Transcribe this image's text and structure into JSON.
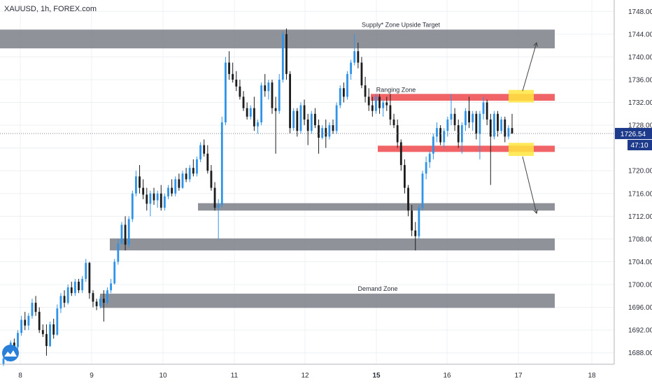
{
  "symbol_title": "XAUUSD, 1h, FOREX.com",
  "colors": {
    "background": "#ffffff",
    "grid": "#edf0f3",
    "up": "#2f93e8",
    "down": "#1c1c1c",
    "zone_gray": "#7b7f87",
    "zone_red": "#ef5c5f",
    "highlight": "#ffe640",
    "last_price_label": "#1e3a8a",
    "axis_text": "#2a2e39"
  },
  "icons": [
    "tradingview-logo-icon",
    "arrow-up-icon",
    "arrow-down-icon"
  ],
  "chart_data": {
    "type": "candlestick",
    "title": "XAUUSD, 1h, FOREX.com",
    "x_ticks": [
      "8",
      "9",
      "10",
      "11",
      "12",
      "15",
      "16",
      "17",
      "18"
    ],
    "y_ticks": [
      1688,
      1692,
      1696,
      1700,
      1704,
      1708,
      1712,
      1716,
      1720,
      1724,
      1728,
      1732,
      1736,
      1740,
      1744,
      1748
    ],
    "y_tick_labels": [
      "1688.00",
      "1692.00",
      "1696.00",
      "1700.00",
      "1704.00",
      "1708.00",
      "1712.00",
      "1716.00",
      "1720.00",
      "1724.00",
      "1728.00",
      "1732.00",
      "1736.00",
      "1740.00",
      "1744.00",
      "1748.00"
    ],
    "ylim": [
      1686,
      1750
    ],
    "last_price": 1726.54,
    "last_price_label": "1726.54",
    "countdown_label": "47:10",
    "zones": [
      {
        "color": "gray",
        "low": 1741.5,
        "high": 1744.8,
        "label": "Supply* Zone Upside Target"
      },
      {
        "color": "red",
        "low": 1732.3,
        "high": 1733.5,
        "label": "Ranging Zone"
      },
      {
        "color": "red",
        "low": 1723.3,
        "high": 1724.4,
        "label": ""
      },
      {
        "color": "gray",
        "low": 1713.0,
        "high": 1714.3,
        "label": ""
      },
      {
        "color": "gray",
        "low": 1706.0,
        "high": 1708.1,
        "label": ""
      },
      {
        "color": "gray",
        "low": 1695.9,
        "high": 1698.4,
        "label": "Demand Zone"
      }
    ],
    "highlights": [
      {
        "low": 1732.0,
        "high": 1734.2
      },
      {
        "low": 1722.6,
        "high": 1724.9
      }
    ],
    "projections": [
      {
        "direction": "up",
        "from": 1734.0,
        "to": 1742.5
      },
      {
        "direction": "down",
        "from": 1722.5,
        "to": 1712.5
      }
    ],
    "candles_ohlc": [
      [
        1686.0,
        1687.5,
        1685.7,
        1687.0
      ],
      [
        1687.0,
        1689.0,
        1686.5,
        1688.6
      ],
      [
        1688.6,
        1690.2,
        1688.0,
        1689.8
      ],
      [
        1689.8,
        1690.5,
        1688.5,
        1689.0
      ],
      [
        1689.0,
        1692.0,
        1688.6,
        1691.5
      ],
      [
        1691.5,
        1694.5,
        1691.0,
        1693.8
      ],
      [
        1693.8,
        1695.2,
        1692.0,
        1692.8
      ],
      [
        1692.8,
        1695.0,
        1692.0,
        1694.5
      ],
      [
        1694.5,
        1697.5,
        1694.0,
        1696.8
      ],
      [
        1696.8,
        1698.0,
        1694.5,
        1695.2
      ],
      [
        1695.2,
        1696.0,
        1691.5,
        1692.0
      ],
      [
        1692.0,
        1693.0,
        1690.8,
        1691.3
      ],
      [
        1691.3,
        1693.0,
        1687.5,
        1689.2
      ],
      [
        1689.2,
        1693.5,
        1689.0,
        1693.0
      ],
      [
        1693.0,
        1694.0,
        1690.5,
        1691.2
      ],
      [
        1691.2,
        1696.5,
        1691.0,
        1695.8
      ],
      [
        1695.8,
        1698.5,
        1695.0,
        1698.0
      ],
      [
        1698.0,
        1699.0,
        1696.0,
        1696.8
      ],
      [
        1696.8,
        1700.0,
        1696.5,
        1699.5
      ],
      [
        1699.5,
        1700.5,
        1698.0,
        1698.5
      ],
      [
        1698.5,
        1701.0,
        1698.0,
        1700.5
      ],
      [
        1700.5,
        1701.0,
        1698.5,
        1699.0
      ],
      [
        1699.0,
        1701.5,
        1698.5,
        1701.0
      ],
      [
        1701.0,
        1704.5,
        1700.5,
        1703.8
      ],
      [
        1703.8,
        1704.0,
        1697.5,
        1698.5
      ],
      [
        1698.5,
        1699.0,
        1696.0,
        1697.0
      ],
      [
        1697.0,
        1697.5,
        1695.5,
        1696.2
      ],
      [
        1696.2,
        1698.0,
        1695.8,
        1697.5
      ],
      [
        1697.5,
        1699.0,
        1693.5,
        1696.8
      ],
      [
        1696.8,
        1699.5,
        1696.5,
        1699.0
      ],
      [
        1699.0,
        1701.0,
        1698.5,
        1700.2
      ],
      [
        1700.2,
        1704.5,
        1700.0,
        1704.0
      ],
      [
        1704.0,
        1708.0,
        1703.5,
        1707.2
      ],
      [
        1707.2,
        1711.0,
        1707.0,
        1710.5
      ],
      [
        1710.5,
        1712.0,
        1706.0,
        1707.0
      ],
      [
        1707.0,
        1712.0,
        1706.5,
        1711.5
      ],
      [
        1711.5,
        1716.5,
        1711.0,
        1716.0
      ],
      [
        1716.0,
        1720.0,
        1715.5,
        1719.0
      ],
      [
        1719.0,
        1721.0,
        1716.0,
        1717.0
      ],
      [
        1717.0,
        1718.5,
        1715.0,
        1715.8
      ],
      [
        1715.8,
        1717.0,
        1713.0,
        1714.2
      ],
      [
        1714.2,
        1716.5,
        1712.0,
        1716.0
      ],
      [
        1716.0,
        1717.0,
        1714.0,
        1714.8
      ],
      [
        1714.8,
        1716.5,
        1713.5,
        1716.0
      ],
      [
        1716.0,
        1717.5,
        1713.0,
        1713.5
      ],
      [
        1713.5,
        1716.0,
        1713.0,
        1715.5
      ],
      [
        1715.5,
        1717.5,
        1715.0,
        1717.0
      ],
      [
        1717.0,
        1718.5,
        1715.5,
        1716.0
      ],
      [
        1716.0,
        1719.0,
        1715.5,
        1718.5
      ],
      [
        1718.5,
        1719.5,
        1716.5,
        1717.0
      ],
      [
        1717.0,
        1720.0,
        1716.8,
        1719.5
      ],
      [
        1719.5,
        1720.5,
        1718.0,
        1718.5
      ],
      [
        1718.5,
        1721.0,
        1718.0,
        1720.5
      ],
      [
        1720.5,
        1722.0,
        1719.0,
        1719.5
      ],
      [
        1719.5,
        1722.5,
        1719.0,
        1722.0
      ],
      [
        1722.0,
        1725.0,
        1721.5,
        1724.5
      ],
      [
        1724.5,
        1725.5,
        1722.5,
        1723.0
      ],
      [
        1723.0,
        1724.5,
        1719.5,
        1720.0
      ],
      [
        1720.0,
        1721.0,
        1716.5,
        1717.0
      ],
      [
        1717.0,
        1718.0,
        1713.0,
        1713.5
      ],
      [
        1713.5,
        1715.0,
        1708.0,
        1714.0
      ],
      [
        1714.0,
        1729.5,
        1713.5,
        1728.5
      ],
      [
        1728.5,
        1740.0,
        1728.0,
        1739.0
      ],
      [
        1739.0,
        1741.0,
        1736.0,
        1737.0
      ],
      [
        1737.0,
        1739.0,
        1735.5,
        1736.0
      ],
      [
        1736.0,
        1737.5,
        1734.0,
        1734.8
      ],
      [
        1734.8,
        1736.0,
        1732.5,
        1733.0
      ],
      [
        1733.0,
        1734.0,
        1730.5,
        1731.0
      ],
      [
        1731.0,
        1732.0,
        1729.0,
        1729.5
      ],
      [
        1729.5,
        1731.5,
        1729.0,
        1731.0
      ],
      [
        1731.0,
        1733.0,
        1727.0,
        1727.8
      ],
      [
        1727.8,
        1729.0,
        1726.5,
        1728.5
      ],
      [
        1728.5,
        1735.5,
        1728.0,
        1735.0
      ],
      [
        1735.0,
        1737.0,
        1733.0,
        1734.0
      ],
      [
        1734.0,
        1736.0,
        1732.5,
        1735.5
      ],
      [
        1735.5,
        1736.0,
        1730.0,
        1731.0
      ],
      [
        1731.0,
        1733.0,
        1723.0,
        1730.5
      ],
      [
        1730.5,
        1737.0,
        1730.0,
        1736.0
      ],
      [
        1736.0,
        1744.5,
        1735.5,
        1744.0
      ],
      [
        1744.0,
        1745.0,
        1736.0,
        1737.0
      ],
      [
        1737.0,
        1737.5,
        1726.5,
        1727.5
      ],
      [
        1727.5,
        1731.0,
        1727.0,
        1730.5
      ],
      [
        1730.5,
        1731.0,
        1726.0,
        1727.0
      ],
      [
        1727.0,
        1732.0,
        1726.5,
        1731.5
      ],
      [
        1731.5,
        1732.5,
        1728.0,
        1729.0
      ],
      [
        1729.0,
        1730.0,
        1724.5,
        1727.0
      ],
      [
        1727.0,
        1730.5,
        1726.5,
        1730.0
      ],
      [
        1730.0,
        1731.0,
        1727.5,
        1728.0
      ],
      [
        1728.0,
        1729.0,
        1723.0,
        1725.8
      ],
      [
        1725.8,
        1728.0,
        1725.5,
        1727.5
      ],
      [
        1727.5,
        1729.0,
        1724.0,
        1726.0
      ],
      [
        1726.0,
        1728.5,
        1725.5,
        1728.0
      ],
      [
        1728.0,
        1729.0,
        1726.5,
        1727.0
      ],
      [
        1727.0,
        1732.0,
        1726.5,
        1731.5
      ],
      [
        1731.5,
        1735.0,
        1731.0,
        1734.5
      ],
      [
        1734.5,
        1735.5,
        1732.0,
        1733.0
      ],
      [
        1733.0,
        1737.5,
        1732.5,
        1737.0
      ],
      [
        1737.0,
        1739.5,
        1736.0,
        1739.0
      ],
      [
        1739.0,
        1744.0,
        1738.5,
        1741.0
      ],
      [
        1741.0,
        1742.5,
        1738.0,
        1739.0
      ],
      [
        1739.0,
        1740.0,
        1734.5,
        1735.0
      ],
      [
        1735.0,
        1736.5,
        1732.0,
        1733.0
      ],
      [
        1733.0,
        1734.5,
        1730.5,
        1731.5
      ],
      [
        1731.5,
        1733.0,
        1729.5,
        1730.5
      ],
      [
        1730.5,
        1733.5,
        1730.0,
        1733.0
      ],
      [
        1733.0,
        1733.5,
        1730.0,
        1731.0
      ],
      [
        1731.0,
        1732.5,
        1729.5,
        1732.0
      ],
      [
        1732.0,
        1733.0,
        1730.5,
        1731.5
      ],
      [
        1731.5,
        1733.5,
        1728.0,
        1729.0
      ],
      [
        1729.0,
        1730.0,
        1727.5,
        1728.0
      ],
      [
        1728.0,
        1729.0,
        1724.0,
        1725.0
      ],
      [
        1725.0,
        1725.5,
        1720.0,
        1721.0
      ],
      [
        1721.0,
        1722.0,
        1716.0,
        1717.0
      ],
      [
        1717.0,
        1717.5,
        1712.0,
        1713.0
      ],
      [
        1713.0,
        1714.0,
        1708.5,
        1709.5
      ],
      [
        1709.5,
        1711.0,
        1706.0,
        1708.5
      ],
      [
        1708.5,
        1714.0,
        1708.0,
        1713.5
      ],
      [
        1713.5,
        1720.0,
        1713.0,
        1719.5
      ],
      [
        1719.5,
        1722.5,
        1718.5,
        1721.5
      ],
      [
        1721.5,
        1723.5,
        1720.5,
        1723.0
      ],
      [
        1723.0,
        1726.5,
        1722.0,
        1726.0
      ],
      [
        1726.0,
        1728.5,
        1725.0,
        1727.5
      ],
      [
        1727.5,
        1728.0,
        1724.5,
        1725.0
      ],
      [
        1725.0,
        1727.5,
        1724.0,
        1727.0
      ],
      [
        1727.0,
        1729.5,
        1726.0,
        1729.0
      ],
      [
        1729.0,
        1733.5,
        1728.0,
        1730.0
      ],
      [
        1730.0,
        1731.0,
        1727.0,
        1728.0
      ],
      [
        1728.0,
        1729.0,
        1724.0,
        1725.0
      ],
      [
        1725.0,
        1728.5,
        1723.0,
        1728.0
      ],
      [
        1728.0,
        1731.0,
        1727.0,
        1730.5
      ],
      [
        1730.5,
        1733.0,
        1727.5,
        1728.5
      ],
      [
        1728.5,
        1730.5,
        1727.0,
        1730.0
      ],
      [
        1730.0,
        1730.5,
        1725.5,
        1726.5
      ],
      [
        1726.5,
        1730.5,
        1722.0,
        1730.0
      ],
      [
        1730.0,
        1733.0,
        1729.0,
        1732.0
      ],
      [
        1732.0,
        1732.5,
        1728.0,
        1729.0
      ],
      [
        1729.0,
        1730.0,
        1717.5,
        1726.0
      ],
      [
        1726.0,
        1730.5,
        1725.5,
        1730.0
      ],
      [
        1730.0,
        1730.5,
        1726.0,
        1727.0
      ],
      [
        1727.0,
        1729.5,
        1726.5,
        1729.0
      ],
      [
        1729.0,
        1729.5,
        1725.0,
        1726.0
      ],
      [
        1726.0,
        1728.0,
        1725.5,
        1727.5
      ],
      [
        1727.5,
        1730.0,
        1727.0,
        1726.5
      ]
    ]
  }
}
